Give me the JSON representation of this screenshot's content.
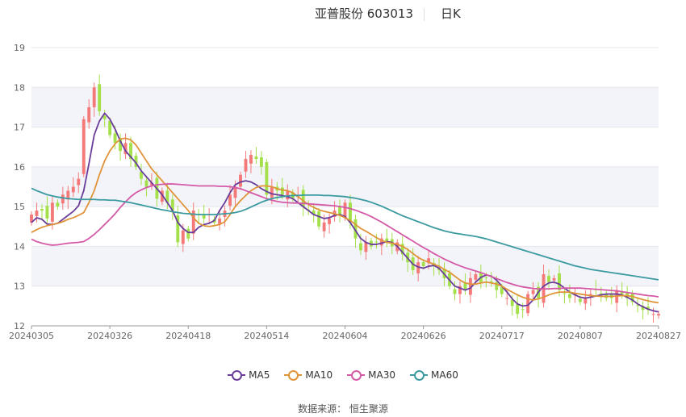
{
  "header": {
    "title": "亚普股份 603013",
    "subtitle": "日K"
  },
  "source_label": "数据来源：  恒生聚源",
  "colors": {
    "up": "#f47a7a",
    "down": "#a3e04a",
    "ma5": "#6a3d9a",
    "ma10": "#e0943a",
    "ma30": "#d45aa8",
    "ma60": "#3a9aa0",
    "band": "#f3f4f9"
  },
  "chart_data": {
    "type": "candlestick",
    "title": "亚普股份 603013",
    "ylim": [
      12,
      19
    ],
    "yticks": [
      12,
      13,
      14,
      15,
      16,
      17,
      18,
      19
    ],
    "x_tick_labels": [
      "20240305",
      "20240326",
      "20240418",
      "20240514",
      "20240604",
      "20240626",
      "20240717",
      "20240807",
      "20240827"
    ],
    "x_tick_index": [
      0,
      15,
      30,
      45,
      60,
      75,
      90,
      105,
      120
    ],
    "grid": true,
    "legend_position": "bottom-center",
    "legend": [
      "MA5",
      "MA10",
      "MA30",
      "MA60"
    ],
    "close": [
      14.8,
      14.9,
      14.9,
      14.7,
      15.1,
      15.0,
      15.3,
      15.4,
      15.5,
      15.7,
      17.2,
      17.5,
      18.0,
      17.4,
      17.2,
      16.8,
      16.6,
      16.4,
      16.6,
      16.2,
      16.0,
      15.7,
      15.5,
      15.6,
      15.2,
      15.4,
      15.1,
      14.9,
      14.1,
      14.4,
      14.2,
      14.9,
      14.8,
      14.7,
      14.8,
      14.6,
      14.7,
      14.9,
      15.3,
      15.5,
      15.8,
      16.2,
      16.3,
      16.2,
      16.0,
      15.3,
      15.5,
      15.4,
      15.3,
      15.4,
      15.2,
      15.3,
      15.0,
      14.9,
      14.8,
      14.5,
      14.6,
      14.7,
      14.9,
      14.8,
      15.1,
      14.6,
      14.2,
      13.9,
      14.1,
      14.0,
      14.1,
      14.2,
      14.1,
      14.0,
      14.1,
      13.8,
      13.6,
      13.4,
      13.6,
      13.5,
      13.7,
      13.5,
      13.4,
      13.2,
      13.0,
      12.8,
      13.0,
      12.9,
      13.2,
      13.3,
      13.1,
      13.2,
      13.1,
      12.9,
      12.8,
      12.7,
      12.5,
      12.3,
      12.4,
      12.8,
      12.9,
      12.7,
      13.3,
      13.1,
      13.2,
      12.9,
      12.8,
      12.7,
      12.8,
      12.6,
      12.7,
      12.8,
      12.9,
      12.8,
      12.7,
      12.7,
      12.9,
      12.8,
      12.7,
      12.6,
      12.5,
      12.4,
      12.4,
      12.3,
      12.3
    ],
    "series": [
      {
        "name": "MA5",
        "values": [
          14.6,
          14.72,
          14.68,
          14.56,
          14.55,
          14.58,
          14.68,
          14.78,
          14.88,
          15.02,
          15.4,
          16.08,
          16.8,
          17.15,
          17.35,
          17.2,
          16.95,
          16.65,
          16.4,
          16.25,
          16.1,
          15.9,
          15.75,
          15.6,
          15.45,
          15.3,
          15.1,
          14.9,
          14.6,
          14.45,
          14.35,
          14.35,
          14.48,
          14.55,
          14.58,
          14.65,
          14.9,
          15.1,
          15.35,
          15.55,
          15.62,
          15.65,
          15.62,
          15.55,
          15.45,
          15.38,
          15.32,
          15.3,
          15.28,
          15.25,
          15.2,
          15.1,
          15.0,
          14.9,
          14.8,
          14.75,
          14.7,
          14.72,
          14.78,
          14.8,
          14.75,
          14.6,
          14.4,
          14.2,
          14.1,
          14.05,
          14.05,
          14.08,
          14.12,
          14.1,
          14.0,
          13.85,
          13.7,
          13.55,
          13.48,
          13.45,
          13.5,
          13.52,
          13.45,
          13.3,
          13.15,
          13.0,
          12.95,
          12.9,
          12.95,
          13.1,
          13.22,
          13.28,
          13.25,
          13.15,
          13.0,
          12.85,
          12.68,
          12.55,
          12.5,
          12.52,
          12.65,
          12.85,
          13.0,
          13.08,
          13.1,
          13.05,
          12.95,
          12.85,
          12.78,
          12.72,
          12.7,
          12.72,
          12.75,
          12.78,
          12.8,
          12.8,
          12.8,
          12.78,
          12.72,
          12.65,
          12.55,
          12.48,
          12.42,
          12.38,
          12.35
        ]
      },
      {
        "name": "MA10",
        "values": [
          14.35,
          14.42,
          14.48,
          14.52,
          14.55,
          14.58,
          14.62,
          14.68,
          14.72,
          14.78,
          14.85,
          15.1,
          15.4,
          15.8,
          16.15,
          16.4,
          16.58,
          16.7,
          16.72,
          16.68,
          16.55,
          16.35,
          16.15,
          15.95,
          15.8,
          15.65,
          15.5,
          15.35,
          15.2,
          15.05,
          14.9,
          14.72,
          14.58,
          14.52,
          14.5,
          14.52,
          14.55,
          14.62,
          14.8,
          15.0,
          15.15,
          15.28,
          15.4,
          15.48,
          15.52,
          15.52,
          15.5,
          15.45,
          15.42,
          15.4,
          15.35,
          15.25,
          15.15,
          15.05,
          14.98,
          14.92,
          14.88,
          14.85,
          14.82,
          14.78,
          14.72,
          14.65,
          14.55,
          14.45,
          14.38,
          14.3,
          14.22,
          14.15,
          14.1,
          14.08,
          14.05,
          14.0,
          13.92,
          13.82,
          13.72,
          13.65,
          13.6,
          13.55,
          13.5,
          13.42,
          13.35,
          13.25,
          13.15,
          13.08,
          13.05,
          13.05,
          13.08,
          13.1,
          13.08,
          13.05,
          13.0,
          12.92,
          12.85,
          12.78,
          12.72,
          12.68,
          12.65,
          12.68,
          12.72,
          12.78,
          12.82,
          12.85,
          12.85,
          12.85,
          12.82,
          12.8,
          12.78,
          12.76,
          12.75,
          12.74,
          12.74,
          12.74,
          12.75,
          12.76,
          12.76,
          12.74,
          12.7,
          12.66,
          12.63,
          12.6,
          12.58
        ]
      },
      {
        "name": "MA30",
        "values": [
          14.18,
          14.12,
          14.08,
          14.05,
          14.03,
          14.04,
          14.06,
          14.08,
          14.09,
          14.1,
          14.12,
          14.2,
          14.3,
          14.42,
          14.55,
          14.68,
          14.82,
          14.98,
          15.12,
          15.25,
          15.35,
          15.42,
          15.48,
          15.52,
          15.55,
          15.56,
          15.57,
          15.57,
          15.56,
          15.55,
          15.54,
          15.53,
          15.52,
          15.52,
          15.52,
          15.52,
          15.51,
          15.51,
          15.5,
          15.48,
          15.45,
          15.4,
          15.35,
          15.3,
          15.25,
          15.2,
          15.16,
          15.13,
          15.11,
          15.1,
          15.09,
          15.09,
          15.08,
          15.07,
          15.06,
          15.05,
          15.04,
          15.03,
          15.02,
          15.0,
          14.98,
          14.95,
          14.91,
          14.86,
          14.81,
          14.75,
          14.68,
          14.61,
          14.53,
          14.45,
          14.37,
          14.29,
          14.21,
          14.13,
          14.05,
          13.97,
          13.9,
          13.82,
          13.75,
          13.68,
          13.62,
          13.56,
          13.51,
          13.46,
          13.42,
          13.38,
          13.34,
          13.29,
          13.24,
          13.19,
          13.14,
          13.09,
          13.05,
          13.01,
          12.98,
          12.96,
          12.94,
          12.93,
          12.93,
          12.93,
          12.94,
          12.94,
          12.95,
          12.95,
          12.95,
          12.95,
          12.94,
          12.93,
          12.92,
          12.91,
          12.9,
          12.89,
          12.88,
          12.86,
          12.84,
          12.82,
          12.8,
          12.78,
          12.76,
          12.75,
          12.73
        ]
      },
      {
        "name": "MA60",
        "values": [
          15.46,
          15.4,
          15.35,
          15.3,
          15.27,
          15.24,
          15.22,
          15.2,
          15.19,
          15.18,
          15.18,
          15.18,
          15.18,
          15.17,
          15.17,
          15.16,
          15.16,
          15.14,
          15.12,
          15.1,
          15.07,
          15.04,
          15.01,
          14.98,
          14.95,
          14.92,
          14.9,
          14.87,
          14.85,
          14.83,
          14.82,
          14.81,
          14.8,
          14.8,
          14.8,
          14.8,
          14.81,
          14.82,
          14.83,
          14.85,
          14.88,
          14.93,
          14.99,
          15.05,
          15.11,
          15.16,
          15.2,
          15.23,
          15.25,
          15.27,
          15.28,
          15.28,
          15.29,
          15.29,
          15.29,
          15.29,
          15.28,
          15.28,
          15.27,
          15.26,
          15.25,
          15.23,
          15.21,
          15.18,
          15.15,
          15.11,
          15.06,
          15.01,
          14.95,
          14.89,
          14.83,
          14.77,
          14.72,
          14.67,
          14.62,
          14.57,
          14.52,
          14.47,
          14.43,
          14.39,
          14.36,
          14.33,
          14.31,
          14.29,
          14.27,
          14.25,
          14.22,
          14.19,
          14.15,
          14.11,
          14.07,
          14.03,
          13.99,
          13.95,
          13.91,
          13.87,
          13.83,
          13.79,
          13.75,
          13.71,
          13.67,
          13.63,
          13.59,
          13.55,
          13.51,
          13.48,
          13.45,
          13.42,
          13.4,
          13.38,
          13.36,
          13.34,
          13.32,
          13.3,
          13.28,
          13.26,
          13.24,
          13.22,
          13.2,
          13.18,
          13.16
        ]
      }
    ]
  }
}
